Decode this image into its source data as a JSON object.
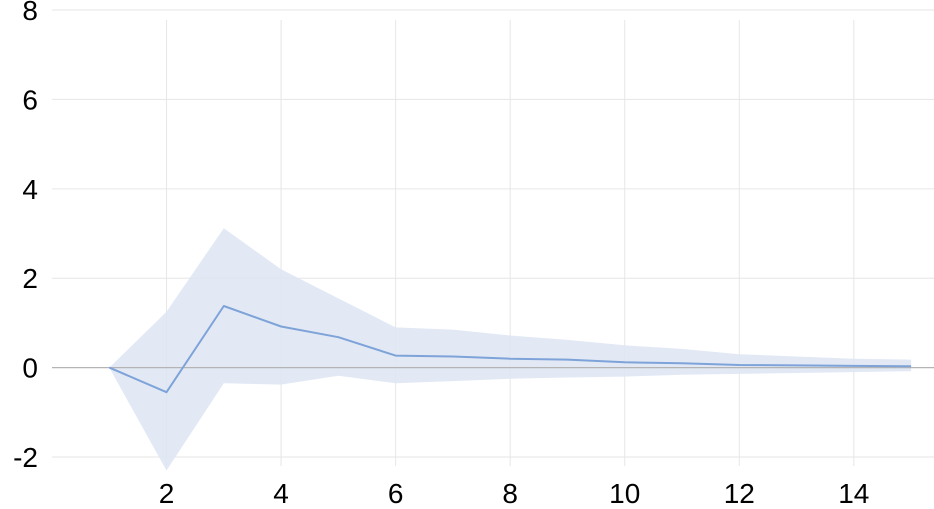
{
  "chart_data": {
    "type": "line",
    "title": "",
    "xlabel": "",
    "ylabel": "",
    "x": [
      1,
      2,
      3,
      4,
      5,
      6,
      7,
      8,
      9,
      10,
      11,
      12,
      13,
      14,
      15
    ],
    "series": [
      {
        "values": [
          0,
          -0.55,
          1.38,
          0.92,
          0.68,
          0.27,
          0.25,
          0.2,
          0.18,
          0.12,
          0.1,
          0.06,
          0.05,
          0.04,
          0.03
        ],
        "lower": [
          0,
          -2.3,
          -0.35,
          -0.38,
          -0.18,
          -0.35,
          -0.3,
          -0.25,
          -0.22,
          -0.2,
          -0.16,
          -0.14,
          -0.12,
          -0.1,
          -0.08
        ],
        "upper": [
          0,
          1.25,
          3.12,
          2.2,
          1.55,
          0.9,
          0.85,
          0.72,
          0.62,
          0.5,
          0.42,
          0.3,
          0.25,
          0.2,
          0.18
        ]
      }
    ],
    "xlim": [
      0,
      15.4
    ],
    "ylim": [
      -2.2,
      8
    ],
    "xticks": [
      2,
      4,
      6,
      8,
      10,
      12,
      14
    ],
    "yticks": [
      -2,
      0,
      2,
      4,
      6,
      8
    ],
    "grid": true,
    "legend": "none",
    "colors": {
      "line": "#7ea3d8",
      "band": "#dde5f3",
      "grid": "#e6e6e6",
      "zero_line": "#b4b4b4"
    }
  }
}
